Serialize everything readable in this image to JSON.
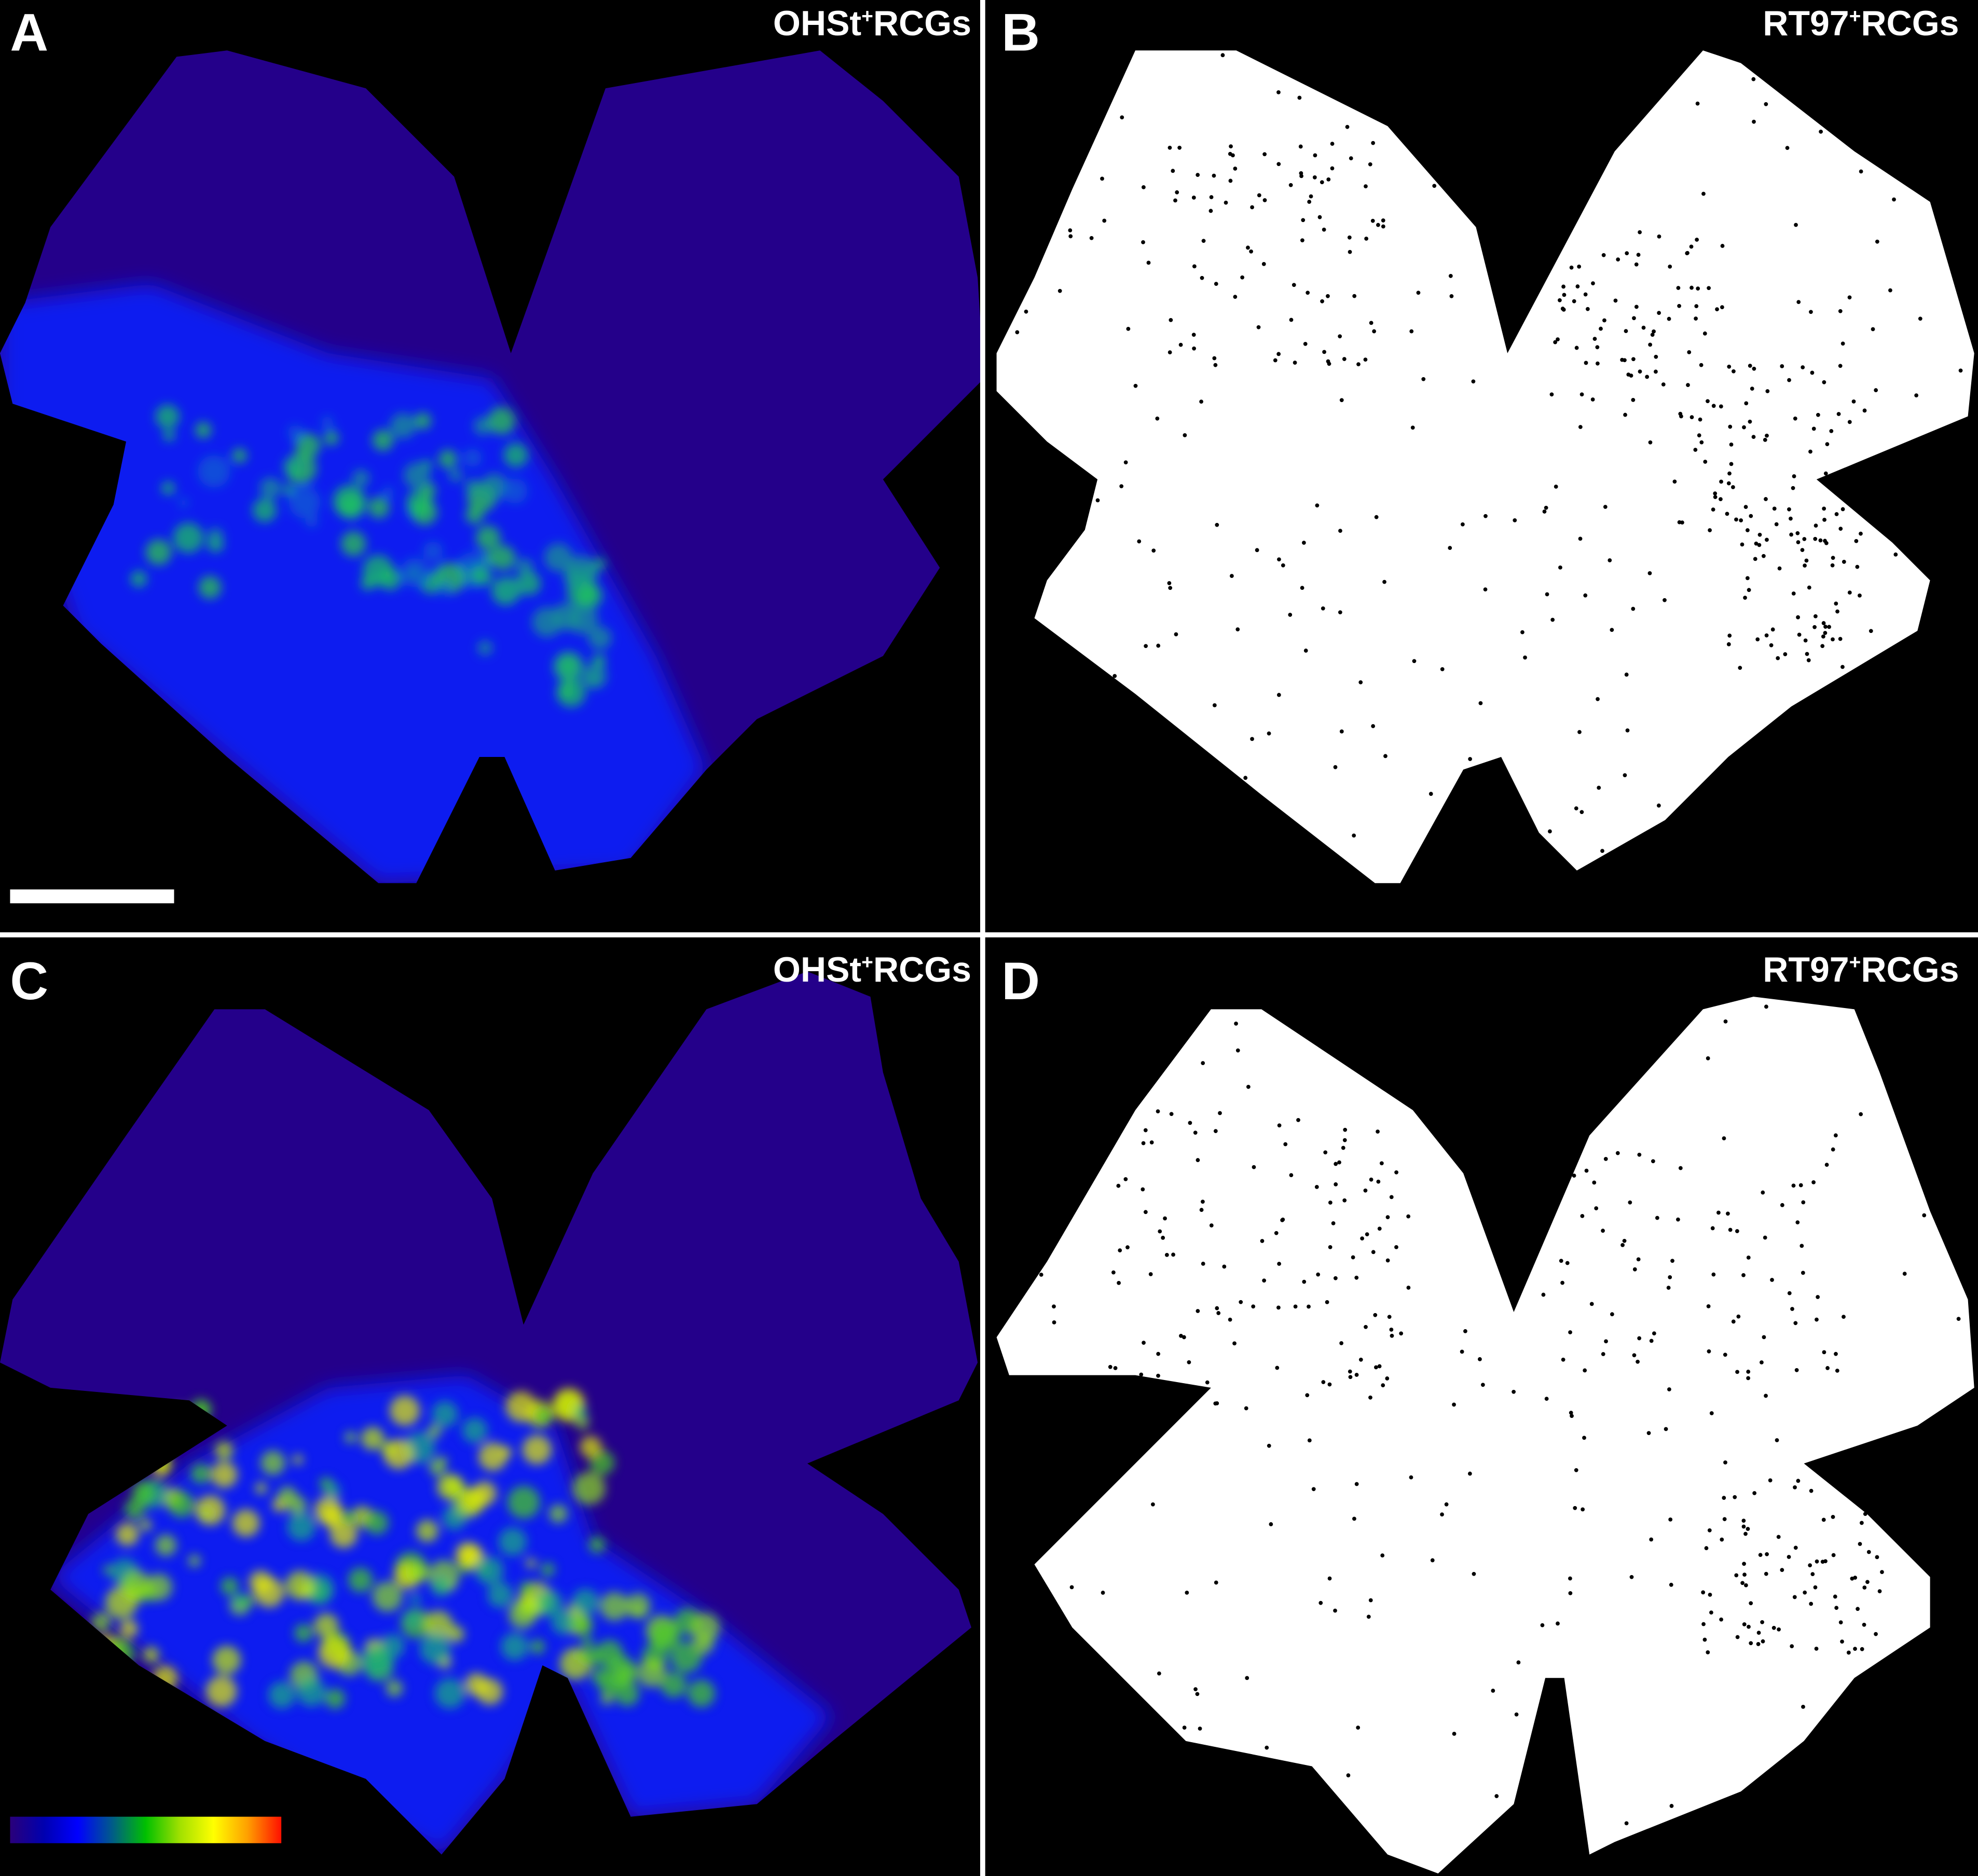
{
  "figure": {
    "panels": [
      {
        "letter": "A",
        "title": "OHSt",
        "title_sup": "+",
        "title_suffix": "RCGs",
        "kind": "isodensity-map",
        "intensity": "moderate"
      },
      {
        "letter": "B",
        "title": "RT97",
        "title_sup": "+",
        "title_suffix": "RCGs",
        "kind": "dot-map"
      },
      {
        "letter": "C",
        "title": "OHSt",
        "title_sup": "+",
        "title_suffix": "RCGs",
        "kind": "isodensity-map",
        "intensity": "high"
      },
      {
        "letter": "D",
        "title": "RT97",
        "title_sup": "+",
        "title_suffix": "RCGs",
        "kind": "dot-map"
      }
    ],
    "scale_bar": {
      "panel": "A",
      "color": "#ffffff"
    },
    "color_scale": {
      "panel": "C",
      "colors": [
        "#2a007a",
        "#0000b0",
        "#0000ff",
        "#005a8a",
        "#00c000",
        "#a0e000",
        "#ffff00",
        "#ffa000",
        "#ff1000"
      ]
    },
    "colors": {
      "background": "#000000",
      "retina_base": "#24008a",
      "divider": "#ffffff",
      "dot_map_fill": "#ffffff",
      "dot": "#000000"
    }
  }
}
